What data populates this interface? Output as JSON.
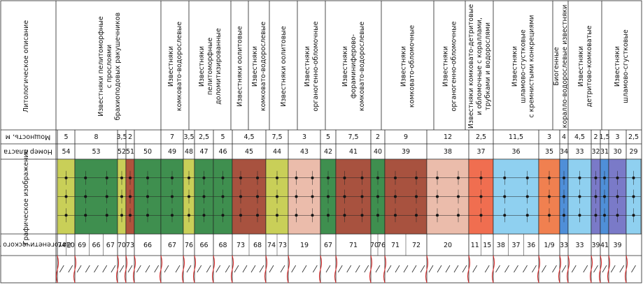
{
  "headers": {
    "description": "Литологическое описание",
    "thickness": "Мощность, м",
    "number": "Номер пласта",
    "graphic": "Графическое изображение",
    "lithotype": "Литогенетического типа"
  },
  "descriptions": [
    {
      "lines": [
        "Известняки пелитоморфные",
        "с прослоями",
        "брахиоподовых ракушечников"
      ]
    },
    {
      "lines": [
        "Известняки",
        "комковато-водорослевые"
      ]
    },
    {
      "lines": [
        "Известняки",
        "пелитоморфные",
        "доломитизированные"
      ]
    },
    {
      "lines": [
        "Известняки оолитовые"
      ]
    },
    {
      "lines": [
        "Известняки",
        "комковато-водорослевые"
      ]
    },
    {
      "lines": [
        "Известняки оолитовые"
      ]
    },
    {
      "lines": [
        "Известняки",
        "органогенно-обломочные"
      ]
    },
    {
      "lines": [
        "Известняки",
        "фораминиферово-",
        "комковато-водорослевые"
      ]
    },
    {
      "lines": [
        "Известняки",
        "комковато-обломочные"
      ]
    },
    {
      "lines": [
        "Известняки",
        "органогенно-обломочные"
      ]
    },
    {
      "lines": [
        "Известняки комковато-детритовые",
        "и обломочные с кораллами,",
        "трубками и водорослями"
      ]
    },
    {
      "lines": [
        "Известняки",
        "шламово-сгустковые",
        "с кремнистыми конкрециями"
      ]
    },
    {
      "lines": [
        "Биогенные",
        "коралло-водорослевые известняки"
      ]
    },
    {
      "lines": [
        "Известняки",
        "детритово-комковатые"
      ]
    },
    {
      "lines": [
        "Известняки",
        "шламово-сгустковые"
      ]
    }
  ],
  "layers": [
    {
      "number": "54",
      "thickness": "5",
      "color": "#c9cf58",
      "litho": [
        "74",
        "70"
      ]
    },
    {
      "number": "53",
      "thickness": "8",
      "color": "#3f8f4f",
      "litho": [
        "69",
        "66",
        "67"
      ]
    },
    {
      "number": "52",
      "thickness": "3,5",
      "color": "#c9cf58",
      "litho": [
        "70"
      ]
    },
    {
      "number": "51",
      "thickness": "2",
      "color": "#b0533c",
      "litho": [
        "73"
      ]
    },
    {
      "number": "50",
      "thickness": null,
      "color": "#3f8f4f",
      "litho": [
        "66"
      ]
    },
    {
      "number": "49",
      "thickness": "7",
      "color": "#3f8f4f",
      "litho": [
        "67"
      ]
    },
    {
      "number": "48",
      "thickness": "3,5",
      "color": "#c9cf58",
      "litho": [
        "76"
      ]
    },
    {
      "number": "47",
      "thickness": "2,5",
      "color": "#3f8f4f",
      "litho": [
        "66"
      ]
    },
    {
      "number": "46",
      "thickness": "5",
      "color": "#3f8f4f",
      "litho": [
        "68"
      ]
    },
    {
      "number": "45",
      "thickness": "4,5",
      "color": "#a8523f",
      "litho": [
        "73",
        "68"
      ]
    },
    {
      "number": "44",
      "thickness": "7,5",
      "color": "#c9cf58",
      "litho": [
        "74",
        "73"
      ]
    },
    {
      "number": "43",
      "thickness": "3",
      "color": "#ebbcab",
      "litho": [
        "19"
      ]
    },
    {
      "number": "42",
      "thickness": "5",
      "color": "#3f8f4f",
      "litho": [
        "67"
      ]
    },
    {
      "number": "41",
      "thickness": "7,5",
      "color": "#a8523f",
      "litho": [
        "71"
      ]
    },
    {
      "number": "40",
      "thickness": "2",
      "color": "#3f8f4f",
      "litho": [
        "70",
        "76"
      ]
    },
    {
      "number": "39",
      "thickness": "9",
      "color": "#a8523f",
      "litho": [
        "71",
        "72"
      ]
    },
    {
      "number": "38",
      "thickness": "12",
      "color": "#ebbcab",
      "litho": [
        "20"
      ]
    },
    {
      "number": "37",
      "thickness": "2,5",
      "color": "#f06e50",
      "litho": [
        "11",
        "15"
      ]
    },
    {
      "number": "36",
      "thickness": "11,5",
      "color": "#8fd0f0",
      "litho": [
        "38",
        "37",
        "36"
      ]
    },
    {
      "number": "35",
      "thickness": "3",
      "color": "#f08050",
      "litho": [
        "1/9"
      ]
    },
    {
      "number": "34",
      "thickness": "4",
      "color": "#4f8fd8",
      "litho": [
        "33"
      ]
    },
    {
      "number": "33",
      "thickness": "4,5",
      "color": "#8fd0f0",
      "litho": [
        "33"
      ]
    },
    {
      "number": "32",
      "thickness": "2",
      "color": "#7a7ac8",
      "litho": [
        "39"
      ]
    },
    {
      "number": "31",
      "thickness": "1,5",
      "color": "#4f8fd8",
      "litho": [
        "41"
      ]
    },
    {
      "number": "30",
      "thickness": "3",
      "color": "#7a7ac8",
      "litho": [
        "39"
      ]
    },
    {
      "number": "29",
      "thickness": "2,5",
      "color": "#8fd0f0",
      "litho": []
    }
  ]
}
